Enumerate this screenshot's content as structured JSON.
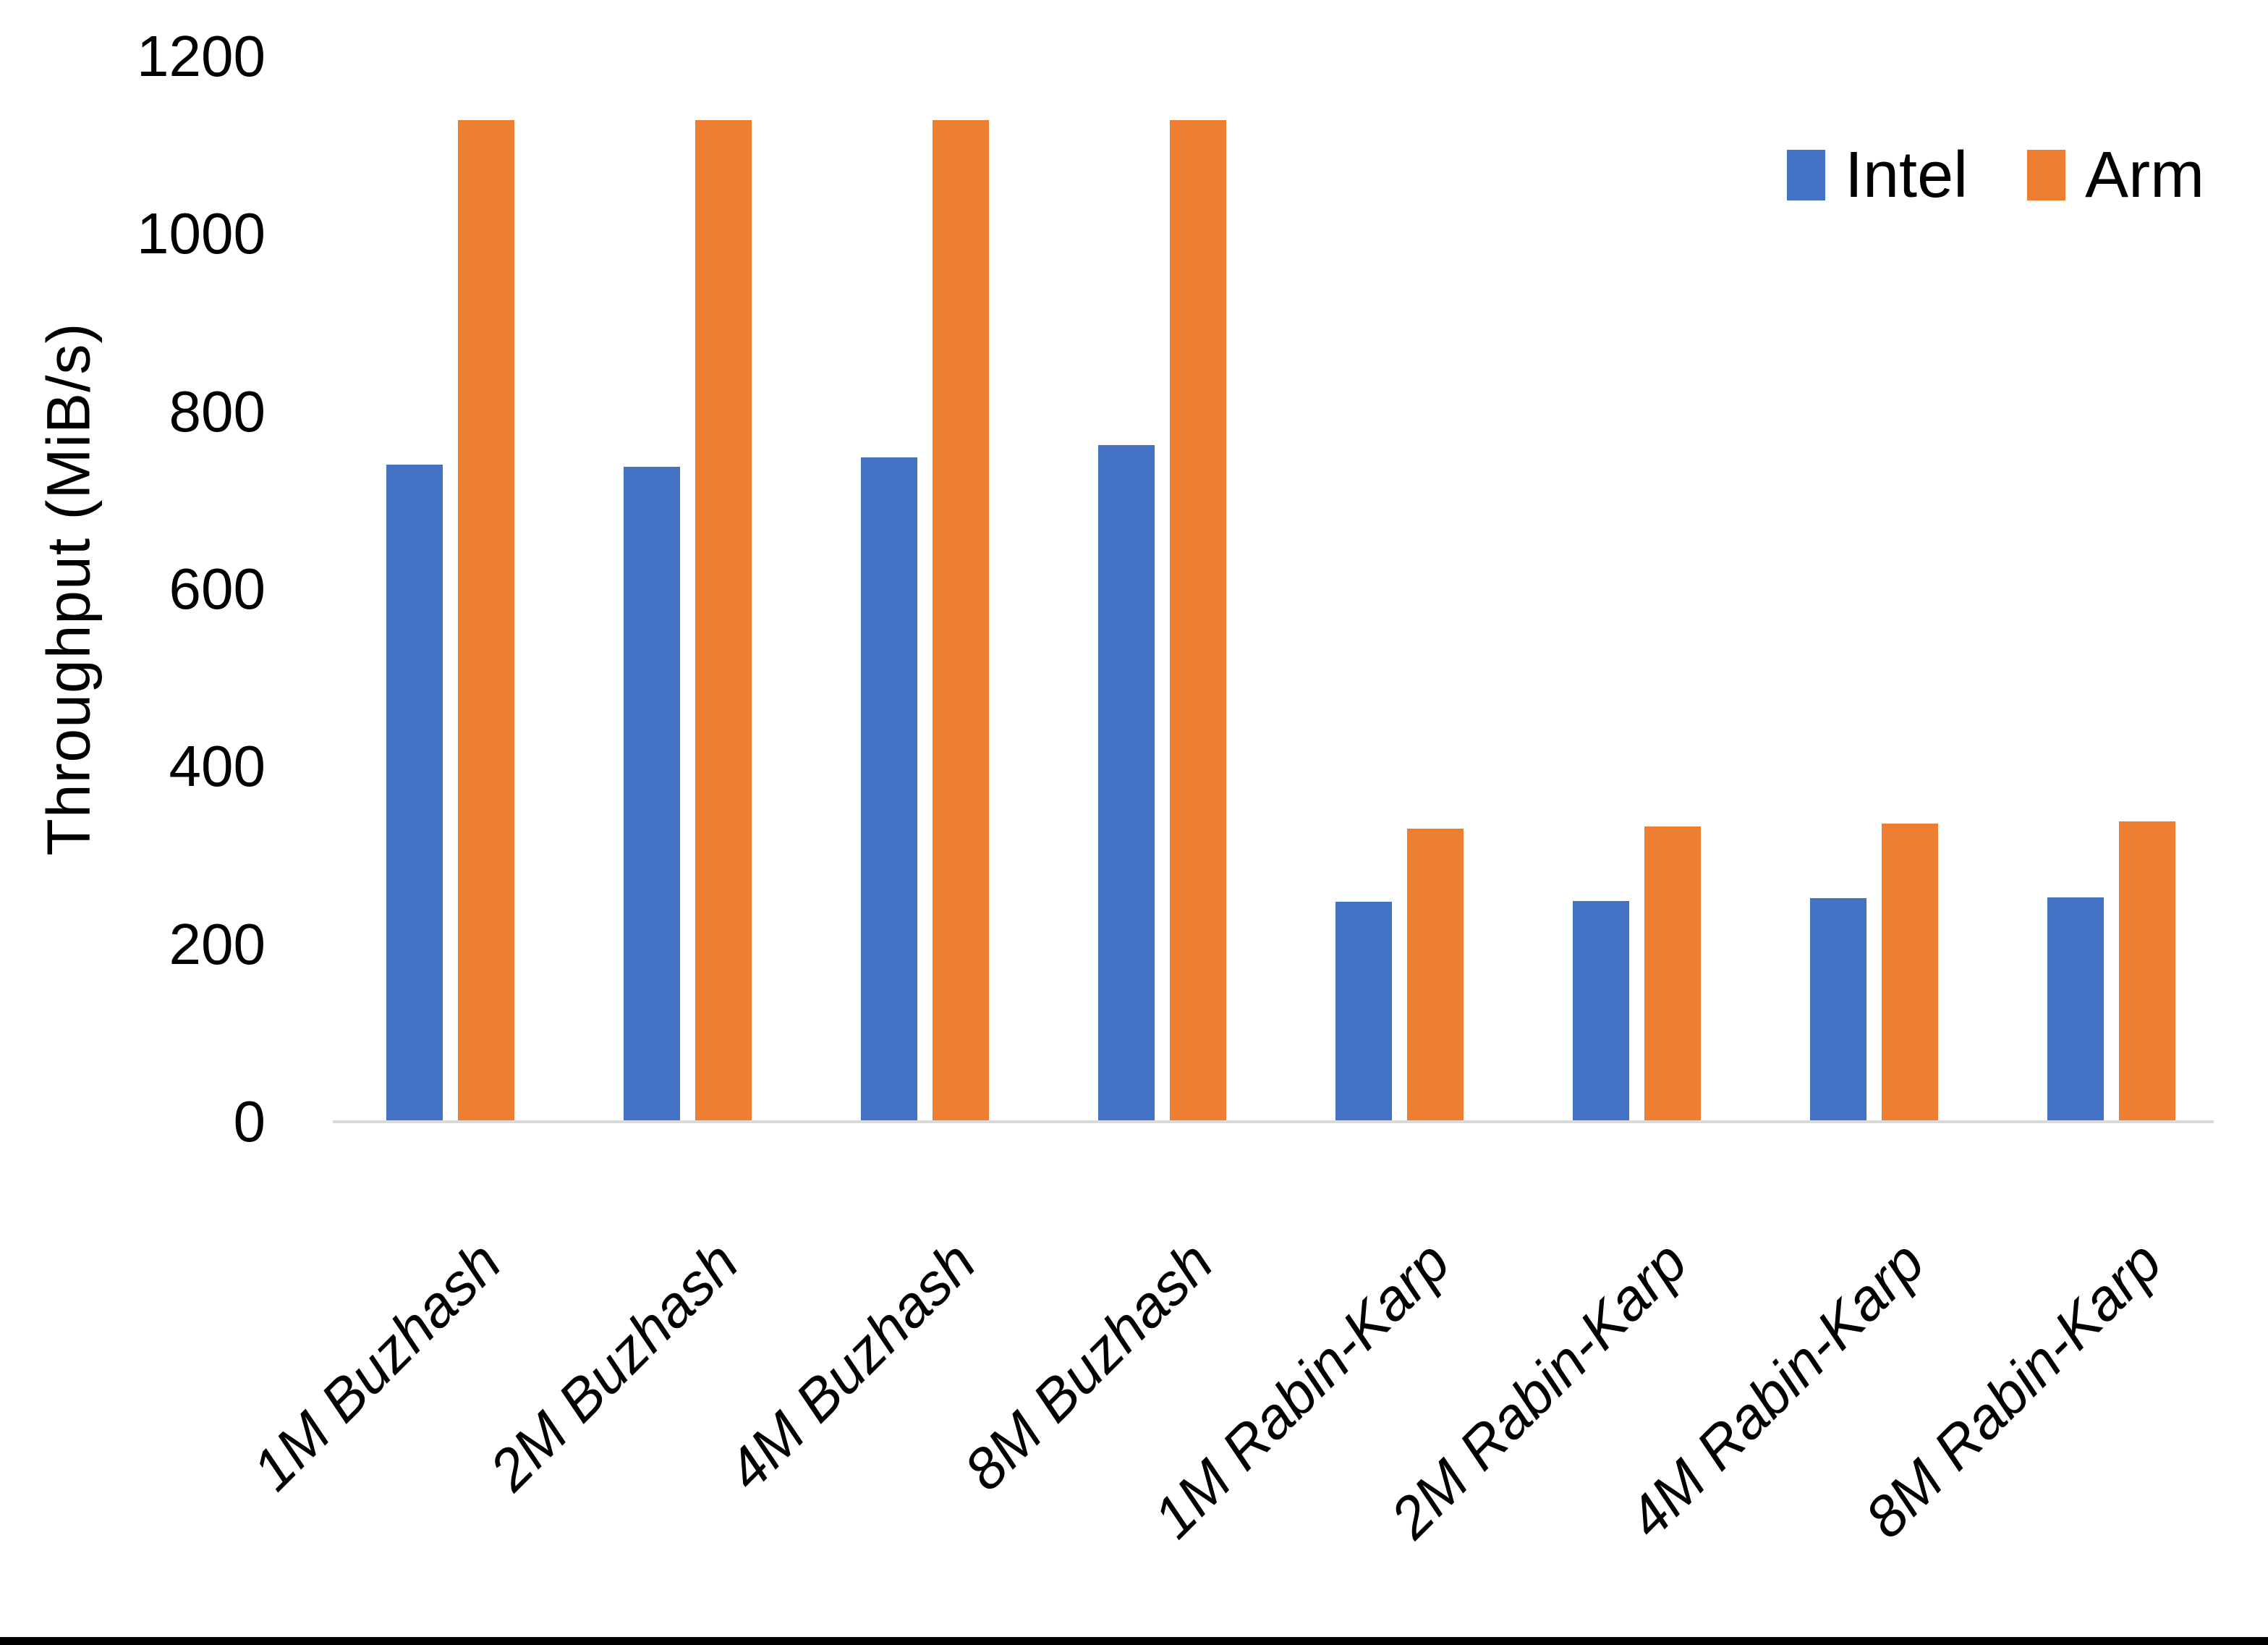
{
  "chart_data": {
    "type": "bar",
    "title": "",
    "xlabel": "",
    "ylabel": "Throughput (MiB/s)",
    "ylim": [
      0,
      1200
    ],
    "ytick_interval": 200,
    "yticks": [
      "0",
      "200",
      "400",
      "600",
      "800",
      "1000",
      "1200"
    ],
    "grid": false,
    "legend_position": "top-right",
    "categories": [
      "1M Buzhash",
      "2M Buzhash",
      "4M Buzhash",
      "8M Buzhash",
      "1M Rabin-Karp",
      "2M Rabin-Karp",
      "4M Rabin-Karp",
      "8M Rabin-Karp"
    ],
    "series": [
      {
        "name": "Intel",
        "color": "#4472C4",
        "values": [
          740,
          738,
          748,
          762,
          248,
          249,
          252,
          253
        ]
      },
      {
        "name": "Arm",
        "color": "#ED7D31",
        "values": [
          1128,
          1128,
          1128,
          1128,
          330,
          333,
          336,
          338
        ]
      }
    ]
  },
  "colors": {
    "background": "#FFFFFF",
    "axis_line": "#D9D9D9",
    "text": "#000000",
    "frame_bottom": "#000000"
  }
}
